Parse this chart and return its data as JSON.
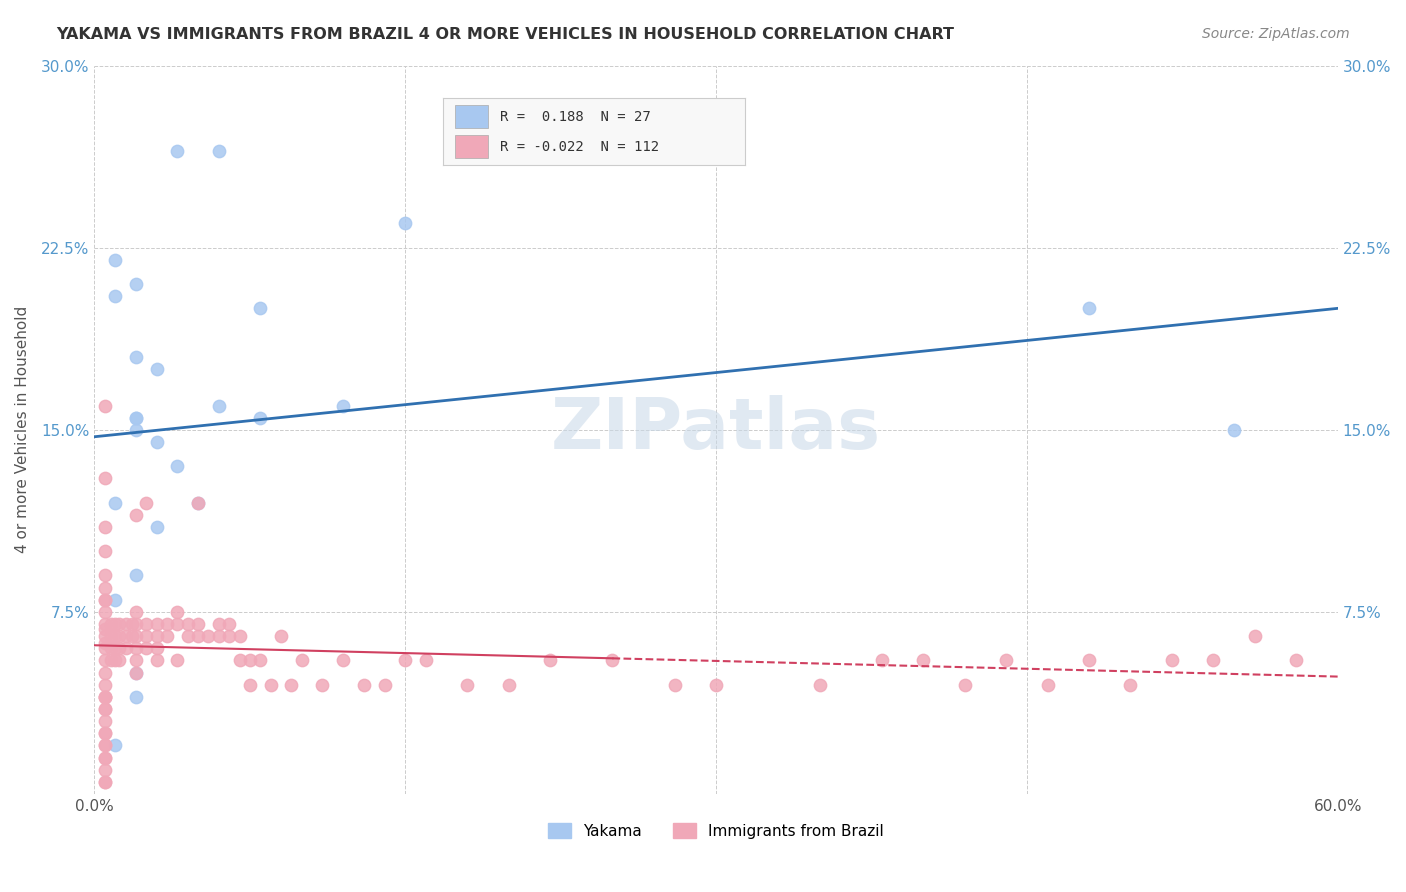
{
  "title": "YAKAMA VS IMMIGRANTS FROM BRAZIL 4 OR MORE VEHICLES IN HOUSEHOLD CORRELATION CHART",
  "source": "Source: ZipAtlas.com",
  "ylabel": "4 or more Vehicles in Household",
  "xmin": 0.0,
  "xmax": 0.6,
  "ymin": 0.0,
  "ymax": 0.3,
  "yticks": [
    0.0,
    0.075,
    0.15,
    0.225,
    0.3
  ],
  "ytick_labels": [
    "",
    "7.5%",
    "15.0%",
    "22.5%",
    "30.0%"
  ],
  "xticks": [
    0.0,
    0.15,
    0.3,
    0.45,
    0.6
  ],
  "xtick_labels": [
    "0.0%",
    "",
    "",
    "",
    "60.0%"
  ],
  "legend_labels": [
    "Yakama",
    "Immigrants from Brazil"
  ],
  "r_yakama": 0.188,
  "n_yakama": 27,
  "r_brazil": -0.022,
  "n_brazil": 112,
  "color_yakama": "#a8c8f0",
  "color_brazil": "#f0a8b8",
  "line_color_yakama": "#3070b0",
  "line_color_brazil": "#d04060",
  "background_color": "#ffffff",
  "grid_color": "#cccccc",
  "watermark": "ZIPatlas",
  "yakama_x": [
    0.02,
    0.04,
    0.06,
    0.01,
    0.01,
    0.02,
    0.03,
    0.02,
    0.04,
    0.02,
    0.02,
    0.06,
    0.08,
    0.15,
    0.01,
    0.03,
    0.08,
    0.12,
    0.02,
    0.03,
    0.05,
    0.48,
    0.55,
    0.01,
    0.02,
    0.02,
    0.01
  ],
  "yakama_y": [
    0.21,
    0.265,
    0.265,
    0.205,
    0.22,
    0.18,
    0.175,
    0.15,
    0.135,
    0.155,
    0.155,
    0.16,
    0.2,
    0.235,
    0.12,
    0.145,
    0.155,
    0.16,
    0.09,
    0.11,
    0.12,
    0.2,
    0.15,
    0.08,
    0.05,
    0.04,
    0.02
  ],
  "brazil_x": [
    0.005,
    0.005,
    0.005,
    0.005,
    0.005,
    0.005,
    0.005,
    0.005,
    0.005,
    0.005,
    0.005,
    0.005,
    0.005,
    0.005,
    0.005,
    0.005,
    0.008,
    0.008,
    0.008,
    0.008,
    0.01,
    0.01,
    0.01,
    0.01,
    0.012,
    0.012,
    0.012,
    0.012,
    0.015,
    0.015,
    0.015,
    0.018,
    0.018,
    0.02,
    0.02,
    0.02,
    0.02,
    0.02,
    0.02,
    0.02,
    0.025,
    0.025,
    0.025,
    0.025,
    0.03,
    0.03,
    0.03,
    0.03,
    0.035,
    0.035,
    0.04,
    0.04,
    0.04,
    0.045,
    0.045,
    0.05,
    0.05,
    0.05,
    0.055,
    0.06,
    0.06,
    0.065,
    0.065,
    0.07,
    0.07,
    0.075,
    0.075,
    0.08,
    0.085,
    0.09,
    0.095,
    0.1,
    0.11,
    0.12,
    0.13,
    0.14,
    0.15,
    0.16,
    0.18,
    0.2,
    0.22,
    0.25,
    0.28,
    0.3,
    0.35,
    0.38,
    0.4,
    0.42,
    0.44,
    0.46,
    0.48,
    0.5,
    0.52,
    0.54,
    0.56,
    0.58,
    0.005,
    0.005,
    0.005,
    0.005,
    0.005,
    0.005,
    0.005,
    0.005,
    0.005,
    0.005,
    0.005,
    0.005,
    0.005,
    0.005,
    0.005,
    0.005
  ],
  "brazil_y": [
    0.075,
    0.068,
    0.062,
    0.055,
    0.05,
    0.045,
    0.04,
    0.035,
    0.03,
    0.025,
    0.02,
    0.015,
    0.01,
    0.005,
    0.07,
    0.065,
    0.07,
    0.065,
    0.06,
    0.055,
    0.07,
    0.065,
    0.06,
    0.055,
    0.07,
    0.065,
    0.06,
    0.055,
    0.07,
    0.065,
    0.06,
    0.07,
    0.065,
    0.075,
    0.07,
    0.065,
    0.06,
    0.055,
    0.05,
    0.115,
    0.07,
    0.065,
    0.06,
    0.12,
    0.07,
    0.065,
    0.06,
    0.055,
    0.07,
    0.065,
    0.075,
    0.07,
    0.055,
    0.07,
    0.065,
    0.07,
    0.065,
    0.12,
    0.065,
    0.07,
    0.065,
    0.07,
    0.065,
    0.065,
    0.055,
    0.055,
    0.045,
    0.055,
    0.045,
    0.065,
    0.045,
    0.055,
    0.045,
    0.055,
    0.045,
    0.045,
    0.055,
    0.055,
    0.045,
    0.045,
    0.055,
    0.055,
    0.045,
    0.045,
    0.045,
    0.055,
    0.055,
    0.045,
    0.055,
    0.045,
    0.055,
    0.045,
    0.055,
    0.055,
    0.065,
    0.055,
    0.035,
    0.025,
    0.015,
    0.005,
    0.08,
    0.085,
    0.09,
    0.1,
    0.11,
    0.13,
    0.08,
    0.06,
    0.04,
    0.02,
    0.16,
    0.04
  ]
}
